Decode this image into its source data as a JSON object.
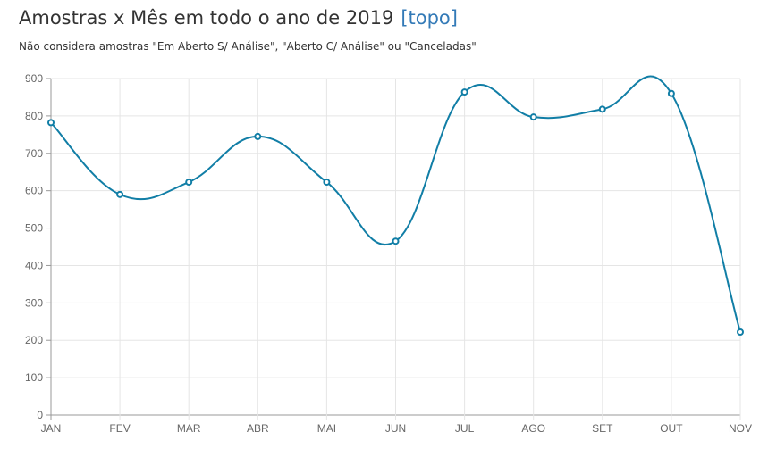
{
  "header": {
    "title": "Amostras x Mês em todo o ano de 2019",
    "top_link": "[topo]",
    "subtitle": "Não considera amostras \"Em Aberto S/ Análise\", \"Aberto C/ Análise\" ou \"Canceladas\""
  },
  "chart_data": {
    "type": "line",
    "title": "Amostras x Mês em todo o ano de 2019",
    "subtitle": "Não considera amostras \"Em Aberto S/ Análise\", \"Aberto C/ Análise\" ou \"Canceladas\"",
    "xlabel": "",
    "ylabel": "",
    "categories": [
      "JAN",
      "FEV",
      "MAR",
      "ABR",
      "MAI",
      "JUN",
      "JUL",
      "AGO",
      "SET",
      "OUT",
      "NOV"
    ],
    "values": [
      782,
      590,
      623,
      745,
      623,
      465,
      864,
      797,
      818,
      860,
      222
    ],
    "ylim": [
      0,
      900
    ],
    "yticks": [
      "0",
      "100",
      "200",
      "300",
      "400",
      "500",
      "600",
      "700",
      "800",
      "900"
    ],
    "grid": true,
    "smooth": true,
    "colors": {
      "line": "#117ea6",
      "grid": "#e5e5e5",
      "axis": "#999999"
    }
  }
}
